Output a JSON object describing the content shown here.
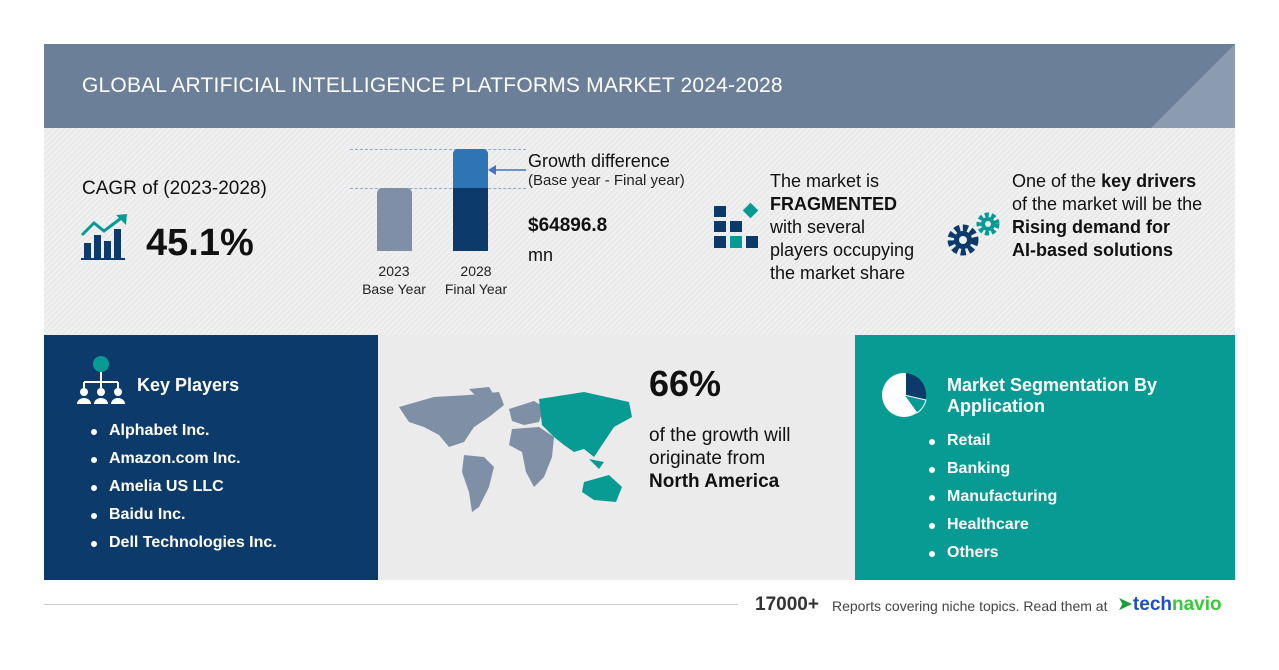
{
  "header": {
    "title": "GLOBAL ARTIFICIAL INTELLIGENCE PLATFORMS MARKET 2024-2028"
  },
  "cagr": {
    "label": "CAGR of (2023-2028)",
    "value": "45.1%",
    "icon": "growth-chart-icon"
  },
  "growth": {
    "title": "Growth difference",
    "subtitle": "(Base year - Final year)",
    "value": "$64896.8",
    "unit": "mn",
    "bars": [
      {
        "year": "2023",
        "label": "Base Year",
        "color": "#7f8fa6"
      },
      {
        "year": "2028",
        "label": "Final Year",
        "color": "#0c3b6b",
        "top_color": "#2e75b6"
      }
    ]
  },
  "market": {
    "line1": "The market is",
    "emph": "FRAGMENTED",
    "line2": "with several",
    "line3": "players occupying",
    "line4": "the market share",
    "icon": "fragmented-blocks-icon"
  },
  "drivers": {
    "line1_pre": "One of the ",
    "line1_bold": "key drivers",
    "line2": "of the market will be the",
    "bold1": "Rising demand for",
    "bold2": "AI-based solutions",
    "icon": "gears-icon"
  },
  "key_players": {
    "title": "Key Players",
    "icon": "network-people-icon",
    "items": [
      "Alphabet Inc.",
      "Amazon.com Inc.",
      "Amelia US LLC",
      "Baidu Inc.",
      "Dell Technologies Inc."
    ]
  },
  "geography": {
    "percent": "66%",
    "line1": "of the growth will",
    "line2": "originate from",
    "region": "North America",
    "icon": "world-map-icon"
  },
  "segmentation": {
    "title1": "Market Segmentation By",
    "title2": "Application",
    "icon": "pie-chart-icon",
    "items": [
      "Retail",
      "Banking",
      "Manufacturing",
      "Healthcare",
      "Others"
    ]
  },
  "footer": {
    "count": "17000+",
    "text": "Reports covering niche topics. Read them at",
    "brand_a": "tech",
    "brand_b": "navio"
  },
  "colors": {
    "header": "#6b7f99",
    "navy": "#0c3b6b",
    "teal": "#079b94",
    "gray": "#ebebeb"
  }
}
